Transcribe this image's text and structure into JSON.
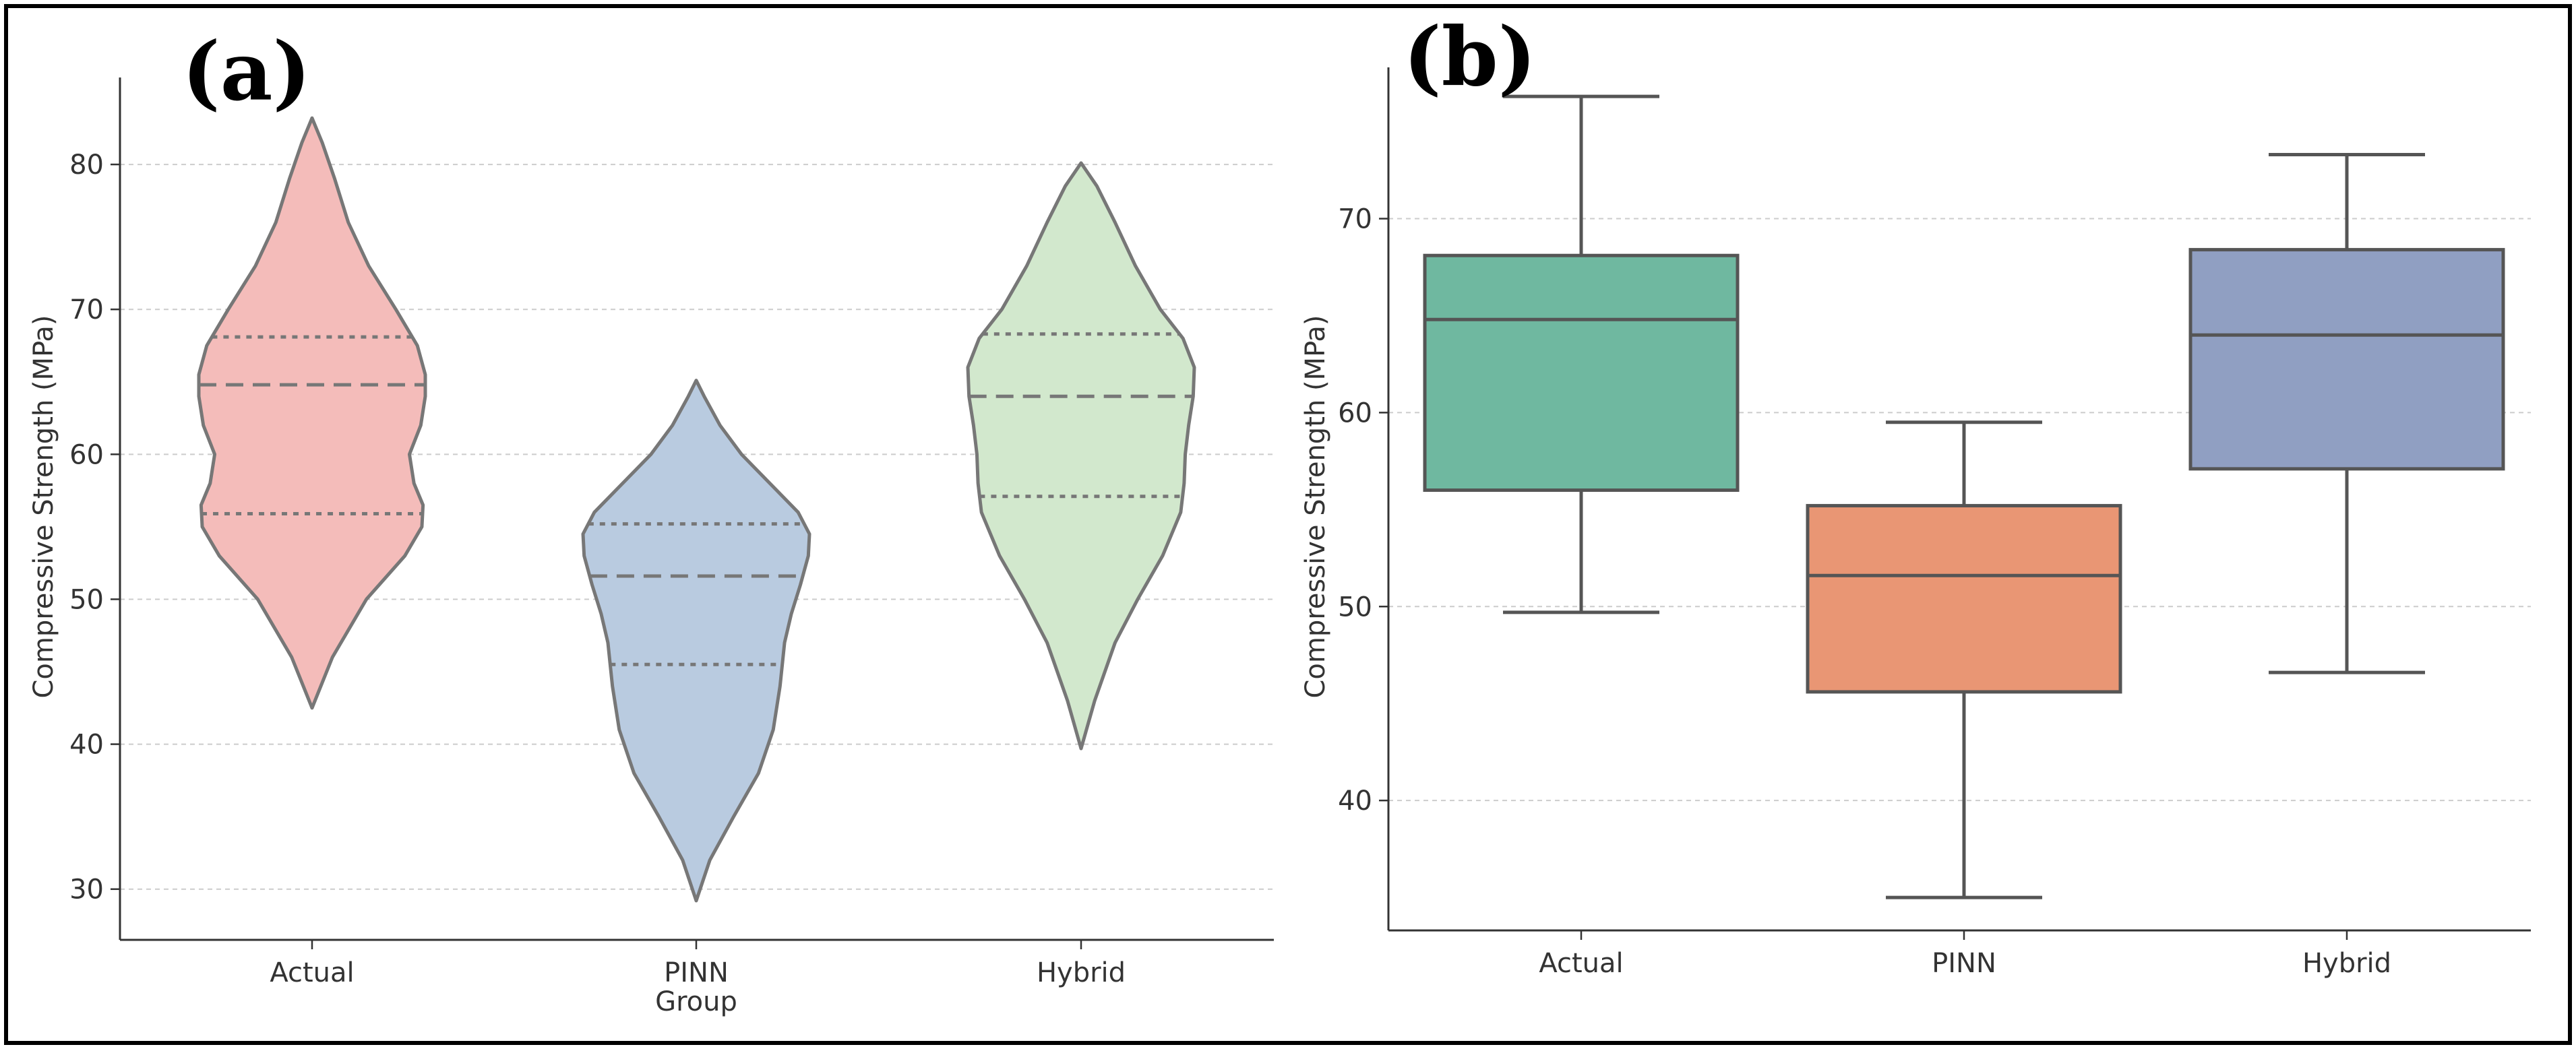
{
  "chart_data": [
    {
      "type": "violin",
      "panel_label": "(a)",
      "categories": [
        "Actual",
        "PINN",
        "Hybrid"
      ],
      "xlabel": "Group",
      "ylabel": "Compressive Strength (MPa)",
      "ylim": [
        26.5,
        86
      ],
      "yticks": [
        30,
        40,
        50,
        60,
        70,
        80
      ],
      "grid": "y-dashed",
      "colors": [
        "#f4bcba",
        "#b9cbe0",
        "#d2e8cd"
      ],
      "outline_color": "#777777",
      "series": [
        {
          "name": "Actual",
          "min": 42.5,
          "max": 83.2,
          "q1": 55.9,
          "median": 64.8,
          "q3": 68.1,
          "density": [
            [
              42.5,
              0
            ],
            [
              46,
              0.18
            ],
            [
              50,
              0.48
            ],
            [
              53,
              0.82
            ],
            [
              55,
              0.97
            ],
            [
              56.5,
              0.98
            ],
            [
              58,
              0.9
            ],
            [
              60,
              0.86
            ],
            [
              62,
              0.96
            ],
            [
              64,
              1.0
            ],
            [
              65.5,
              1.0
            ],
            [
              67.5,
              0.93
            ],
            [
              70,
              0.74
            ],
            [
              73,
              0.5
            ],
            [
              76,
              0.32
            ],
            [
              79,
              0.2
            ],
            [
              81.5,
              0.09
            ],
            [
              83.2,
              0
            ]
          ]
        },
        {
          "name": "PINN",
          "min": 29.2,
          "max": 65.1,
          "q1": 45.5,
          "median": 51.6,
          "q3": 55.2,
          "density": [
            [
              29.2,
              0
            ],
            [
              32,
              0.12
            ],
            [
              35,
              0.33
            ],
            [
              38,
              0.55
            ],
            [
              41,
              0.68
            ],
            [
              44,
              0.74
            ],
            [
              47,
              0.78
            ],
            [
              49,
              0.84
            ],
            [
              51,
              0.92
            ],
            [
              53,
              0.99
            ],
            [
              54.5,
              1.0
            ],
            [
              56,
              0.9
            ],
            [
              58,
              0.65
            ],
            [
              60,
              0.4
            ],
            [
              62,
              0.21
            ],
            [
              64,
              0.07
            ],
            [
              65.1,
              0
            ]
          ]
        },
        {
          "name": "Hybrid",
          "min": 39.7,
          "max": 80.1,
          "q1": 57.1,
          "median": 64.0,
          "q3": 68.3,
          "density": [
            [
              39.7,
              0
            ],
            [
              43,
              0.12
            ],
            [
              47,
              0.3
            ],
            [
              50,
              0.5
            ],
            [
              53,
              0.72
            ],
            [
              56,
              0.88
            ],
            [
              58,
              0.91
            ],
            [
              60,
              0.92
            ],
            [
              62,
              0.95
            ],
            [
              64,
              0.99
            ],
            [
              66,
              1.0
            ],
            [
              68,
              0.9
            ],
            [
              70,
              0.7
            ],
            [
              73,
              0.48
            ],
            [
              76,
              0.3
            ],
            [
              78.5,
              0.14
            ],
            [
              80.1,
              0
            ]
          ]
        }
      ]
    },
    {
      "type": "box",
      "panel_label": "(b)",
      "categories": [
        "Actual",
        "PINN",
        "Hybrid"
      ],
      "xlabel": "",
      "ylabel": "Compressive Strength (MPa)",
      "ylim": [
        33.3,
        77.8
      ],
      "yticks": [
        40,
        50,
        60,
        70
      ],
      "grid": "y-dashed",
      "colors": [
        "#6fb8a0",
        "#e99674",
        "#909fc2"
      ],
      "line_color": "#555555",
      "series": [
        {
          "name": "Actual",
          "whisker_low": 49.7,
          "q1": 56.0,
          "median": 64.8,
          "q3": 68.1,
          "whisker_high": 76.3
        },
        {
          "name": "PINN",
          "whisker_low": 35.0,
          "q1": 45.6,
          "median": 51.6,
          "q3": 55.2,
          "whisker_high": 59.5
        },
        {
          "name": "Hybrid",
          "whisker_low": 46.6,
          "q1": 57.1,
          "median": 64.0,
          "q3": 68.4,
          "whisker_high": 73.3
        }
      ]
    }
  ]
}
